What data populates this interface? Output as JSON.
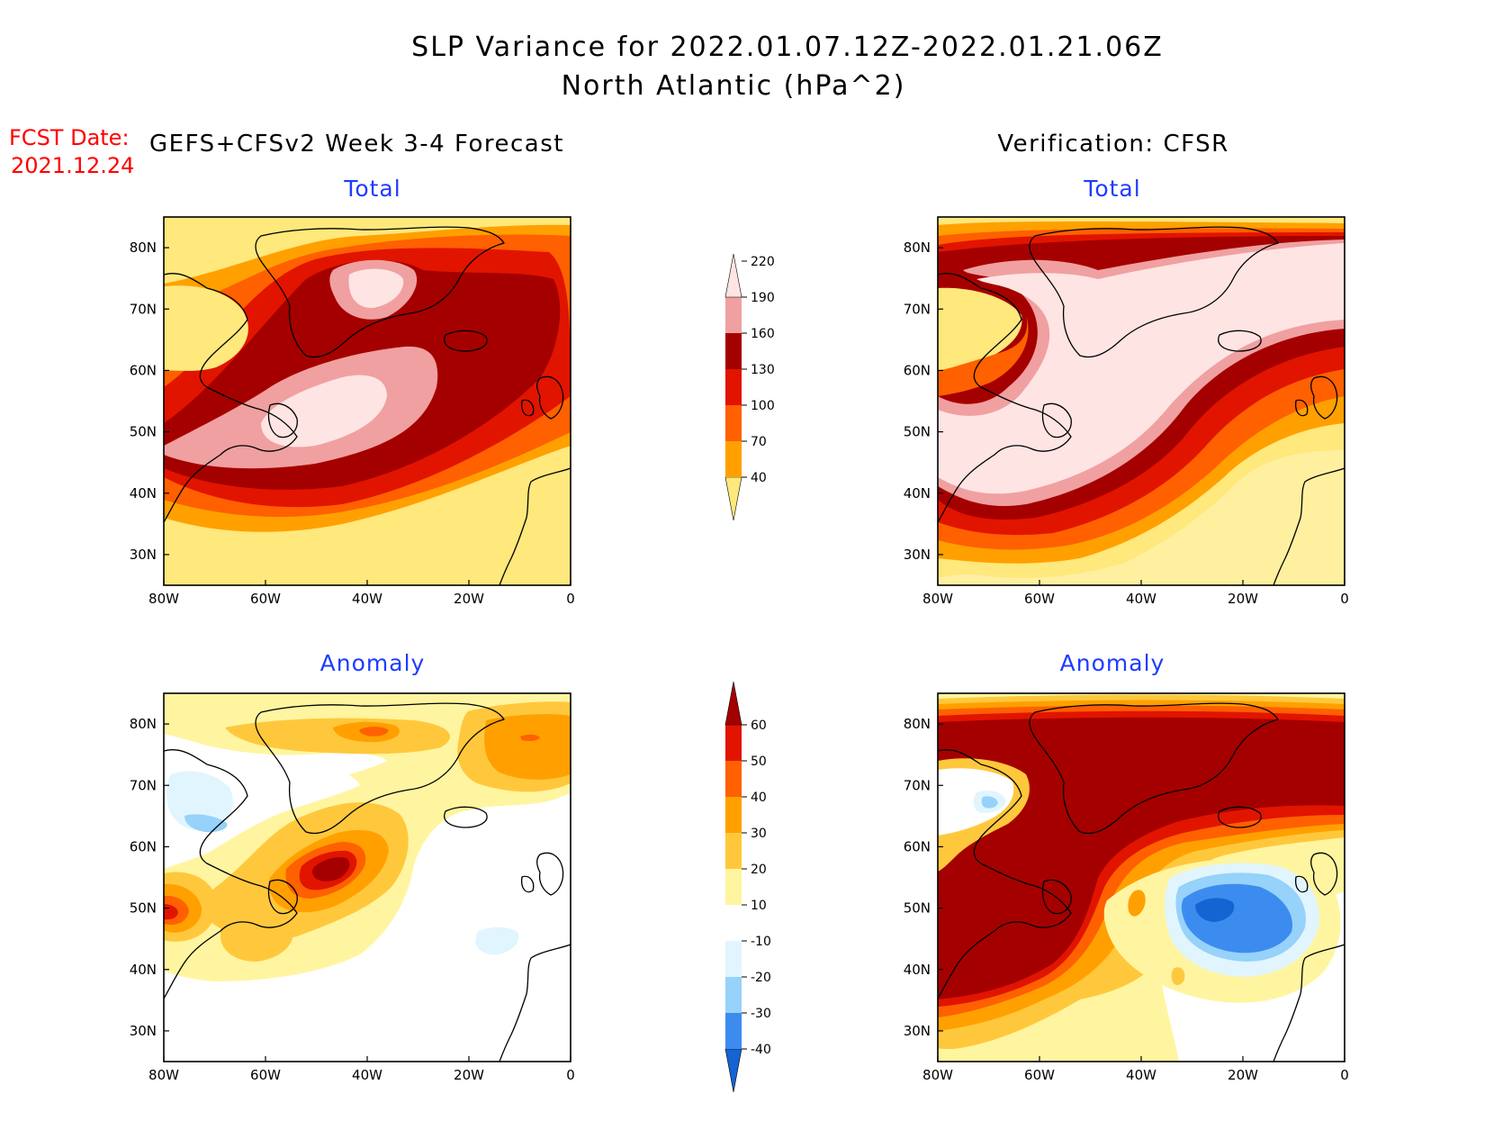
{
  "title": {
    "line1": "SLP Variance for 2022.01.07.12Z-2022.01.21.06Z",
    "line2": "North Atlantic (hPa^2)"
  },
  "fcst_date": {
    "label": "FCST Date:",
    "value": "2021.12.24"
  },
  "columns": {
    "left": "GEFS+CFSv2 Week 3-4 Forecast",
    "right": "Verification: CFSR"
  },
  "panel_titles": {
    "forecast_total": "Total",
    "verification_total": "Total",
    "forecast_anomaly": "Anomaly",
    "verification_anomaly": "Anomaly"
  },
  "axes": {
    "lon_labels": [
      "80W",
      "60W",
      "40W",
      "20W",
      "0"
    ],
    "lat_labels": [
      "30N",
      "40N",
      "50N",
      "60N",
      "70N",
      "80N"
    ]
  },
  "colorbars": {
    "total": {
      "labels": [
        "40",
        "70",
        "100",
        "130",
        "160",
        "190",
        "220"
      ],
      "colors": [
        "#ffe87c",
        "#ffa000",
        "#ff6000",
        "#e11400",
        "#a50000",
        "#f0a0a0",
        "#ffe4e4"
      ]
    },
    "anomaly": {
      "labels": [
        "-40",
        "-30",
        "-20",
        "-10",
        "10",
        "20",
        "30",
        "40",
        "50",
        "60"
      ],
      "colors": [
        "#1464d2",
        "#3c8cf0",
        "#96d2fa",
        "#e1f5ff",
        "#ffffff",
        "#fff5a0",
        "#ffc83c",
        "#ffa000",
        "#ff6000",
        "#e11400",
        "#a50000"
      ]
    }
  },
  "map_data": {
    "projection": "lat-lon",
    "lon_range": [
      -80,
      0
    ],
    "lat_range": [
      25,
      85
    ],
    "fill": {
      "forecast_total": "#ffe87c",
      "verification_total": "#fff0a0",
      "forecast_anomaly": "#ffffff",
      "verification_anomaly": "#fff5a0"
    }
  }
}
